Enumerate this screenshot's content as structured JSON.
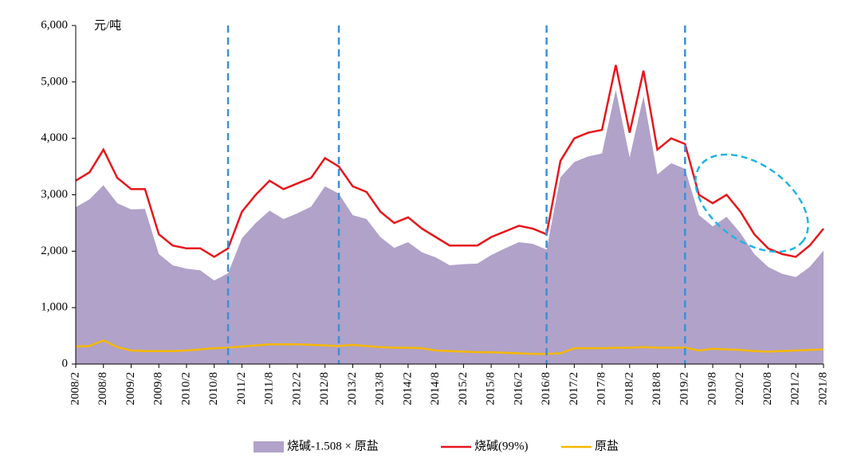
{
  "chart_data": {
    "type": "area_line",
    "y_label": "元/吨",
    "categories": [
      "2008/2",
      null,
      "2008/8",
      null,
      "2009/2",
      null,
      "2009/8",
      null,
      "2010/2",
      null,
      "2010/8",
      null,
      "2011/2",
      null,
      "2011/8",
      null,
      "2012/2",
      null,
      "2012/8",
      null,
      "2013/2",
      null,
      "2013/8",
      null,
      "2014/2",
      null,
      "2014/8",
      null,
      "2015/2",
      null,
      "2015/8",
      null,
      "2016/2",
      null,
      "2016/8",
      null,
      "2017/2",
      null,
      "2017/8",
      null,
      "2018/2",
      null,
      "2018/8",
      null,
      "2019/2",
      null,
      "2019/8",
      null,
      "2020/2",
      null,
      "2020/8",
      null,
      "2021/2",
      null,
      "2021/8"
    ],
    "series": [
      {
        "name": "烧碱-1.508 × 原盐",
        "kind": "area",
        "color": "#b1a2c9",
        "values": [
          2780,
          2920,
          3170,
          2850,
          2740,
          2750,
          1950,
          1750,
          1690,
          1660,
          1480,
          1610,
          2230,
          2500,
          2720,
          2570,
          2670,
          2790,
          3150,
          3020,
          2640,
          2570,
          2250,
          2060,
          2160,
          1980,
          1890,
          1750,
          1770,
          1780,
          1930,
          2050,
          2160,
          2130,
          2030,
          3310,
          3580,
          3680,
          3730,
          4860,
          3660,
          4750,
          3360,
          3560,
          3460,
          2640,
          2440,
          2610,
          2320,
          1950,
          1720,
          1600,
          1540,
          1720,
          2010
        ]
      },
      {
        "name": "烧碱(99%)",
        "kind": "line",
        "color": "#e8161b",
        "values": [
          3250,
          3400,
          3800,
          3300,
          3100,
          3100,
          2300,
          2100,
          2050,
          2050,
          1900,
          2050,
          2700,
          3000,
          3250,
          3100,
          3200,
          3300,
          3650,
          3500,
          3150,
          3050,
          2700,
          2500,
          2600,
          2400,
          2250,
          2100,
          2100,
          2100,
          2250,
          2350,
          2450,
          2400,
          2300,
          3600,
          4000,
          4100,
          4150,
          5300,
          4100,
          5200,
          3800,
          4000,
          3900,
          3000,
          2850,
          3000,
          2700,
          2300,
          2050,
          1950,
          1900,
          2100,
          2400
        ]
      },
      {
        "name": "原盐",
        "kind": "line",
        "color": "#f5b800",
        "values": [
          310,
          320,
          420,
          300,
          240,
          230,
          230,
          230,
          240,
          260,
          280,
          290,
          310,
          330,
          350,
          350,
          350,
          340,
          330,
          320,
          340,
          320,
          300,
          290,
          290,
          280,
          240,
          230,
          220,
          210,
          210,
          200,
          190,
          180,
          180,
          190,
          280,
          280,
          280,
          290,
          290,
          300,
          290,
          290,
          290,
          240,
          270,
          260,
          250,
          230,
          220,
          230,
          240,
          250,
          260
        ]
      }
    ],
    "ylim": [
      0,
      6000
    ],
    "yticks": [
      0,
      {
        "value": 1000,
        "label": "1,000"
      },
      {
        "value": 2000,
        "label": "2,000"
      },
      {
        "value": 3000,
        "label": "3,000"
      },
      {
        "value": 4000,
        "label": "4,000"
      },
      {
        "value": 5000,
        "label": "5,000"
      },
      {
        "value": 6000,
        "label": "6,000"
      }
    ],
    "reference_lines": [
      11,
      19,
      34,
      44
    ],
    "reference_color": "#3d8fd6",
    "legend": "bottom"
  }
}
